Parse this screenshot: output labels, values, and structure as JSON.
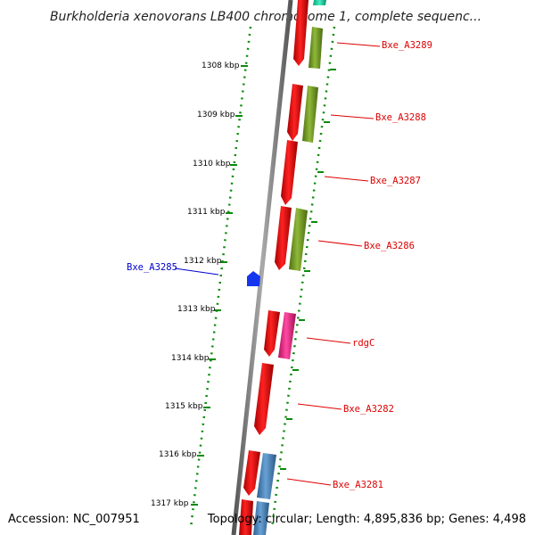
{
  "title": "Burkholderia xenovorans LB400 chromosome 1, complete sequenc...",
  "footer": {
    "accession": "Accession: NC_007951",
    "topology": "Topology: circular; Length: 4,895,836 bp; Genes: 4,498"
  },
  "scale_ticks": [
    {
      "label": "1308 kbp"
    },
    {
      "label": "1309 kbp"
    },
    {
      "label": "1310 kbp"
    },
    {
      "label": "1311 kbp"
    },
    {
      "label": "1312 kbp"
    },
    {
      "label": "1313 kbp"
    },
    {
      "label": "1314 kbp"
    },
    {
      "label": "1315 kbp"
    },
    {
      "label": "1316 kbp"
    },
    {
      "label": "1317 kbp"
    }
  ],
  "gene_labels": [
    {
      "name": "Bxe_A3289",
      "color": "#dd0000"
    },
    {
      "name": "Bxe_A3288",
      "color": "#dd0000"
    },
    {
      "name": "Bxe_A3287",
      "color": "#dd0000"
    },
    {
      "name": "Bxe_A3286",
      "color": "#dd0000"
    },
    {
      "name": "rdgC",
      "color": "#dd0000"
    },
    {
      "name": "Bxe_A3282",
      "color": "#dd0000"
    },
    {
      "name": "Bxe_A3281",
      "color": "#dd0000"
    },
    {
      "name": "Bxe_A3285",
      "color": "#0000cc"
    }
  ],
  "colors": {
    "axis": "#777777",
    "tick_green": "#0b8a0b",
    "gene_red": "#ee1111",
    "gene_olive": "#6f9a1f",
    "gene_pink": "#ee2a8a",
    "gene_steelblue": "#4a86bf",
    "gene_blue": "#0022ee",
    "gene_teal": "#22ddaa"
  }
}
